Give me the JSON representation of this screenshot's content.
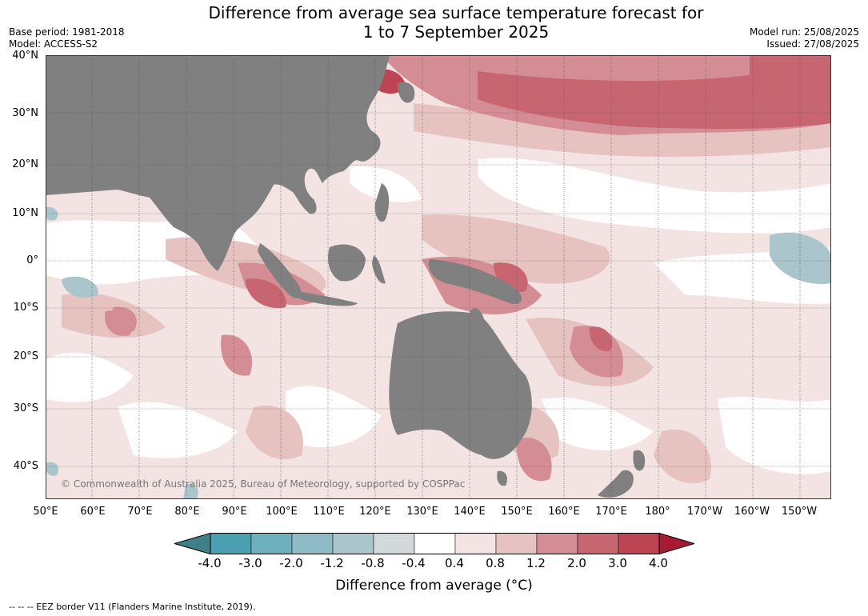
{
  "title_line1": "Difference from average sea surface temperature forecast for",
  "title_line2": "1 to 7 September 2025",
  "base_period": "Base period: 1981-2018",
  "model": "Model: ACCESS-S2",
  "model_run": "Model run: 25/08/2025",
  "issued": "Issued: 27/08/2025",
  "lat_labels": [
    "40°N",
    "30°N",
    "20°N",
    "10°N",
    "0°",
    "10°S",
    "20°S",
    "30°S",
    "40°S"
  ],
  "lon_labels": [
    "50°E",
    "60°E",
    "70°E",
    "80°E",
    "90°E",
    "100°E",
    "110°E",
    "120°E",
    "130°E",
    "140°E",
    "150°E",
    "160°E",
    "170°E",
    "180°",
    "170°W",
    "160°W",
    "150°W"
  ],
  "copyright": "© Commonwealth of Australia 2025, Bureau of Meteorology, supported by COSPPac",
  "colorbar": {
    "ticks": [
      "-4.0",
      "-3.0",
      "-2.0",
      "-1.2",
      "-0.8",
      "-0.4",
      "0.4",
      "0.8",
      "1.2",
      "2.0",
      "3.0",
      "4.0"
    ],
    "colors": [
      "#3f7f88",
      "#4aa0b0",
      "#6fb0bd",
      "#8fbbc7",
      "#aac6cc",
      "#d3d9db",
      "#ffffff",
      "#f3e3e2",
      "#e6c3c0",
      "#d48d94",
      "#c76670",
      "#bd4452",
      "#a61a36"
    ],
    "label": "Difference from average (°C)"
  },
  "footnote": "-- -- -- EEZ border V11 (Flanders Marine Institute, 2019).",
  "colors": {
    "land": "#808080",
    "grid": "#555555"
  }
}
